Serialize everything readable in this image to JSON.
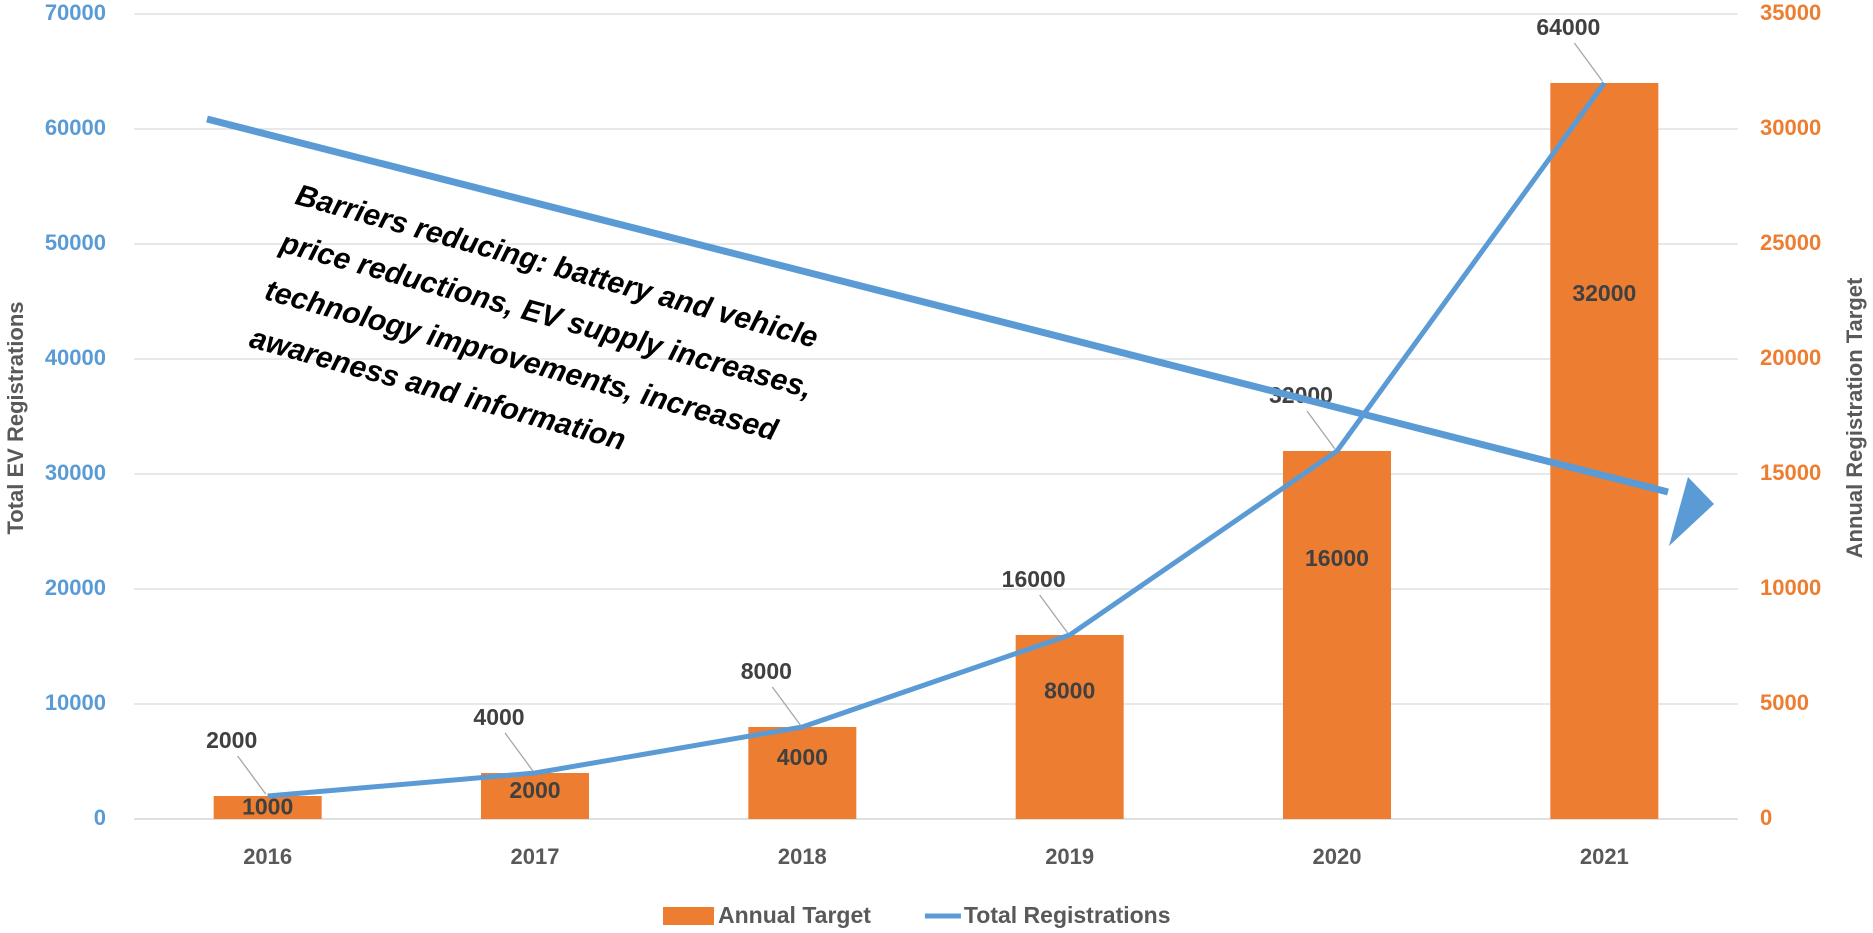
{
  "chart_data": {
    "type": "combo",
    "categories": [
      "2016",
      "2017",
      "2018",
      "2019",
      "2020",
      "2021"
    ],
    "series": [
      {
        "name": "Annual Target",
        "type": "bar",
        "axis": "y2",
        "color": "#ed7d31",
        "values": [
          1000,
          2000,
          4000,
          8000,
          16000,
          32000
        ]
      },
      {
        "name": "Total Registrations",
        "type": "line",
        "axis": "y",
        "color": "#5b9bd5",
        "values": [
          2000,
          4000,
          8000,
          16000,
          32000,
          64000
        ]
      }
    ],
    "ylabel": "Total EV Registrations",
    "y2label": "Annual Registration Target",
    "ylim": [
      0,
      70000
    ],
    "yticks": [
      0,
      10000,
      20000,
      30000,
      40000,
      50000,
      60000,
      70000
    ],
    "y2lim": [
      0,
      35000
    ],
    "y2ticks": [
      0,
      5000,
      10000,
      15000,
      20000,
      25000,
      30000,
      35000
    ],
    "ytick_color": "#5b9bd5",
    "y2tick_color": "#ed7d31",
    "grid": true,
    "legend": "bottom",
    "annotation": [
      "Barriers reducing: battery and vehicle",
      "price reductions, EV supply increases,",
      "technology improvements, increased",
      "awareness and information"
    ]
  }
}
